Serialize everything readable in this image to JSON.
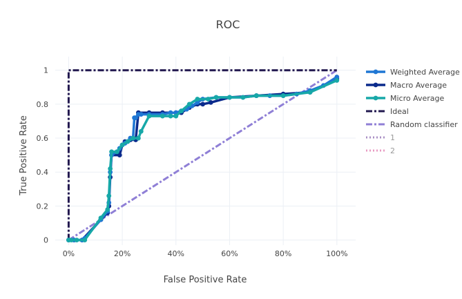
{
  "chart_data": {
    "type": "line",
    "title": "ROC",
    "xlabel": "False Positive Rate",
    "ylabel": "True Positive Rate",
    "xlim": [
      -0.05,
      1.07
    ],
    "ylim": [
      -0.03,
      1.08
    ],
    "x_ticks": [
      0,
      0.2,
      0.4,
      0.6,
      0.8,
      1.0
    ],
    "x_tick_labels": [
      "0%",
      "20%",
      "40%",
      "60%",
      "80%",
      "100%"
    ],
    "y_ticks": [
      0,
      0.2,
      0.4,
      0.6,
      0.8,
      1.0
    ],
    "y_tick_labels": [
      "0",
      "0.2",
      "0.4",
      "0.6",
      "0.8",
      "1"
    ],
    "grid": true,
    "legend_position": "right",
    "series": [
      {
        "name": "Weighted Average",
        "color": "#1f77d4",
        "style": "solid",
        "markers": true,
        "x": [
          0,
          0.02,
          0.05,
          0.06,
          0.12,
          0.145,
          0.15,
          0.155,
          0.16,
          0.18,
          0.19,
          0.2,
          0.21,
          0.22,
          0.23,
          0.24,
          0.245,
          0.25,
          0.26,
          0.27,
          0.3,
          0.35,
          0.38,
          0.4,
          0.42,
          0.44,
          0.46,
          0.48,
          0.5,
          0.55,
          0.6,
          0.65,
          0.7,
          0.75,
          0.8,
          0.85,
          0.9,
          0.95,
          1.0
        ],
        "y": [
          0,
          0,
          0,
          0.01,
          0.12,
          0.17,
          0.22,
          0.4,
          0.5,
          0.52,
          0.54,
          0.56,
          0.57,
          0.58,
          0.6,
          0.6,
          0.72,
          0.72,
          0.74,
          0.74,
          0.74,
          0.74,
          0.75,
          0.75,
          0.76,
          0.77,
          0.79,
          0.81,
          0.83,
          0.84,
          0.84,
          0.84,
          0.85,
          0.85,
          0.85,
          0.86,
          0.88,
          0.91,
          0.96
        ]
      },
      {
        "name": "Macro Average",
        "color": "#0a2a8c",
        "style": "solid",
        "markers": true,
        "x": [
          0,
          0.02,
          0.05,
          0.12,
          0.145,
          0.15,
          0.155,
          0.16,
          0.19,
          0.2,
          0.21,
          0.23,
          0.25,
          0.26,
          0.3,
          0.35,
          0.4,
          0.42,
          0.45,
          0.48,
          0.5,
          0.53,
          0.6,
          0.7,
          0.8,
          0.9,
          1.0
        ],
        "y": [
          0,
          0,
          0,
          0.12,
          0.16,
          0.2,
          0.37,
          0.5,
          0.5,
          0.56,
          0.58,
          0.59,
          0.59,
          0.75,
          0.75,
          0.75,
          0.75,
          0.75,
          0.78,
          0.8,
          0.8,
          0.81,
          0.84,
          0.85,
          0.86,
          0.87,
          0.95
        ]
      },
      {
        "name": "Micro Average",
        "color": "#17a8a8",
        "style": "solid",
        "markers": true,
        "x": [
          0,
          0.01,
          0.03,
          0.06,
          0.12,
          0.145,
          0.15,
          0.155,
          0.16,
          0.18,
          0.2,
          0.22,
          0.24,
          0.26,
          0.27,
          0.3,
          0.35,
          0.38,
          0.4,
          0.42,
          0.45,
          0.48,
          0.52,
          0.55,
          0.6,
          0.65,
          0.7,
          0.8,
          0.9,
          1.0
        ],
        "y": [
          0,
          0,
          0,
          0,
          0.13,
          0.18,
          0.26,
          0.42,
          0.52,
          0.52,
          0.56,
          0.58,
          0.6,
          0.6,
          0.64,
          0.73,
          0.73,
          0.73,
          0.73,
          0.76,
          0.8,
          0.83,
          0.83,
          0.84,
          0.84,
          0.84,
          0.85,
          0.85,
          0.87,
          0.94
        ]
      },
      {
        "name": "Ideal",
        "color": "#22184f",
        "style": "dashdot",
        "markers": false,
        "x": [
          0,
          0,
          1.0
        ],
        "y": [
          0,
          1.0,
          1.0
        ]
      },
      {
        "name": "Random classifier",
        "color": "#8f7fd6",
        "style": "dashdot",
        "markers": false,
        "x": [
          0,
          1.0
        ],
        "y": [
          0,
          1.0
        ]
      },
      {
        "name": "1",
        "color": "#a98fc4",
        "style": "dot",
        "markers": false,
        "legendonly": true,
        "x": [],
        "y": []
      },
      {
        "name": "2",
        "color": "#e89ac2",
        "style": "dot",
        "markers": false,
        "legendonly": true,
        "x": [],
        "y": []
      }
    ]
  }
}
